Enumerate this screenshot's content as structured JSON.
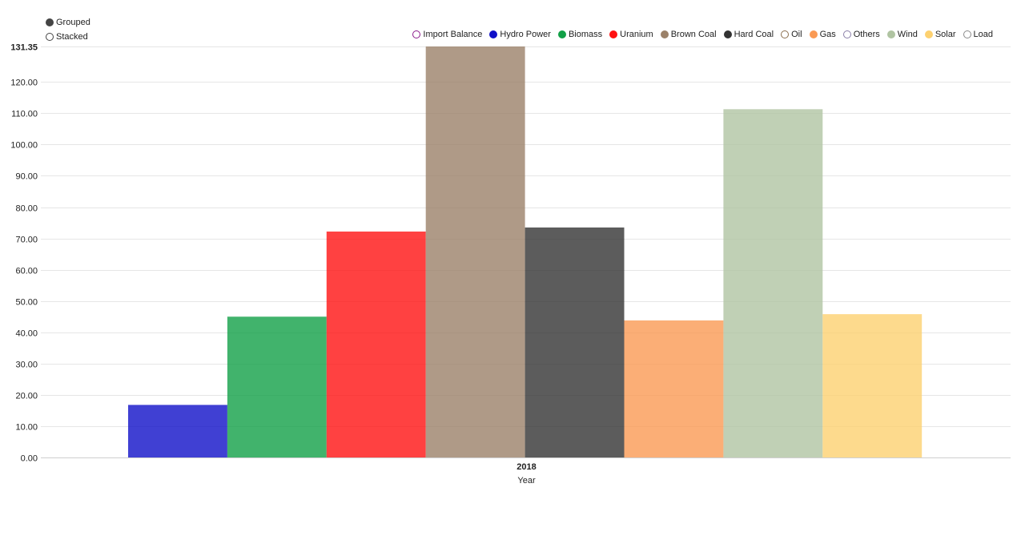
{
  "mode_toggle": {
    "options": [
      {
        "label": "Grouped",
        "selected": true
      },
      {
        "label": "Stacked",
        "selected": false
      }
    ]
  },
  "chart_data": {
    "type": "bar",
    "categories": [
      "2018"
    ],
    "xlabel": "Year",
    "ylabel": "",
    "ylim": [
      0,
      131.35
    ],
    "y_max_label": "131.35",
    "y_ticks": [
      "0.00",
      "10.00",
      "20.00",
      "30.00",
      "40.00",
      "50.00",
      "60.00",
      "70.00",
      "80.00",
      "90.00",
      "100.00",
      "110.00",
      "120.00"
    ],
    "grid": true,
    "legend_position": "top-right",
    "series": [
      {
        "name": "Import Balance",
        "color": "#8b1a8b",
        "enabled": false,
        "values": [
          0
        ]
      },
      {
        "name": "Hydro Power",
        "color": "#1010c8",
        "enabled": true,
        "values": [
          16.8
        ]
      },
      {
        "name": "Biomass",
        "color": "#12a047",
        "enabled": true,
        "values": [
          45.0
        ]
      },
      {
        "name": "Uranium",
        "color": "#ff1111",
        "enabled": true,
        "values": [
          72.2
        ]
      },
      {
        "name": "Brown Coal",
        "color": "#9b8169",
        "enabled": true,
        "values": [
          131.35
        ]
      },
      {
        "name": "Hard Coal",
        "color": "#333333",
        "enabled": true,
        "values": [
          73.5
        ]
      },
      {
        "name": "Oil",
        "color": "#8b6e4e",
        "enabled": false,
        "values": [
          0
        ]
      },
      {
        "name": "Gas",
        "color": "#fa9a54",
        "enabled": true,
        "values": [
          43.8
        ]
      },
      {
        "name": "Others",
        "color": "#8a7fa8",
        "enabled": false,
        "values": [
          0
        ]
      },
      {
        "name": "Wind",
        "color": "#b0c4a2",
        "enabled": true,
        "values": [
          111.3
        ]
      },
      {
        "name": "Solar",
        "color": "#fdd170",
        "enabled": true,
        "values": [
          45.8
        ]
      },
      {
        "name": "Load",
        "color": "#8a8a8a",
        "enabled": false,
        "values": [
          0
        ]
      }
    ]
  }
}
